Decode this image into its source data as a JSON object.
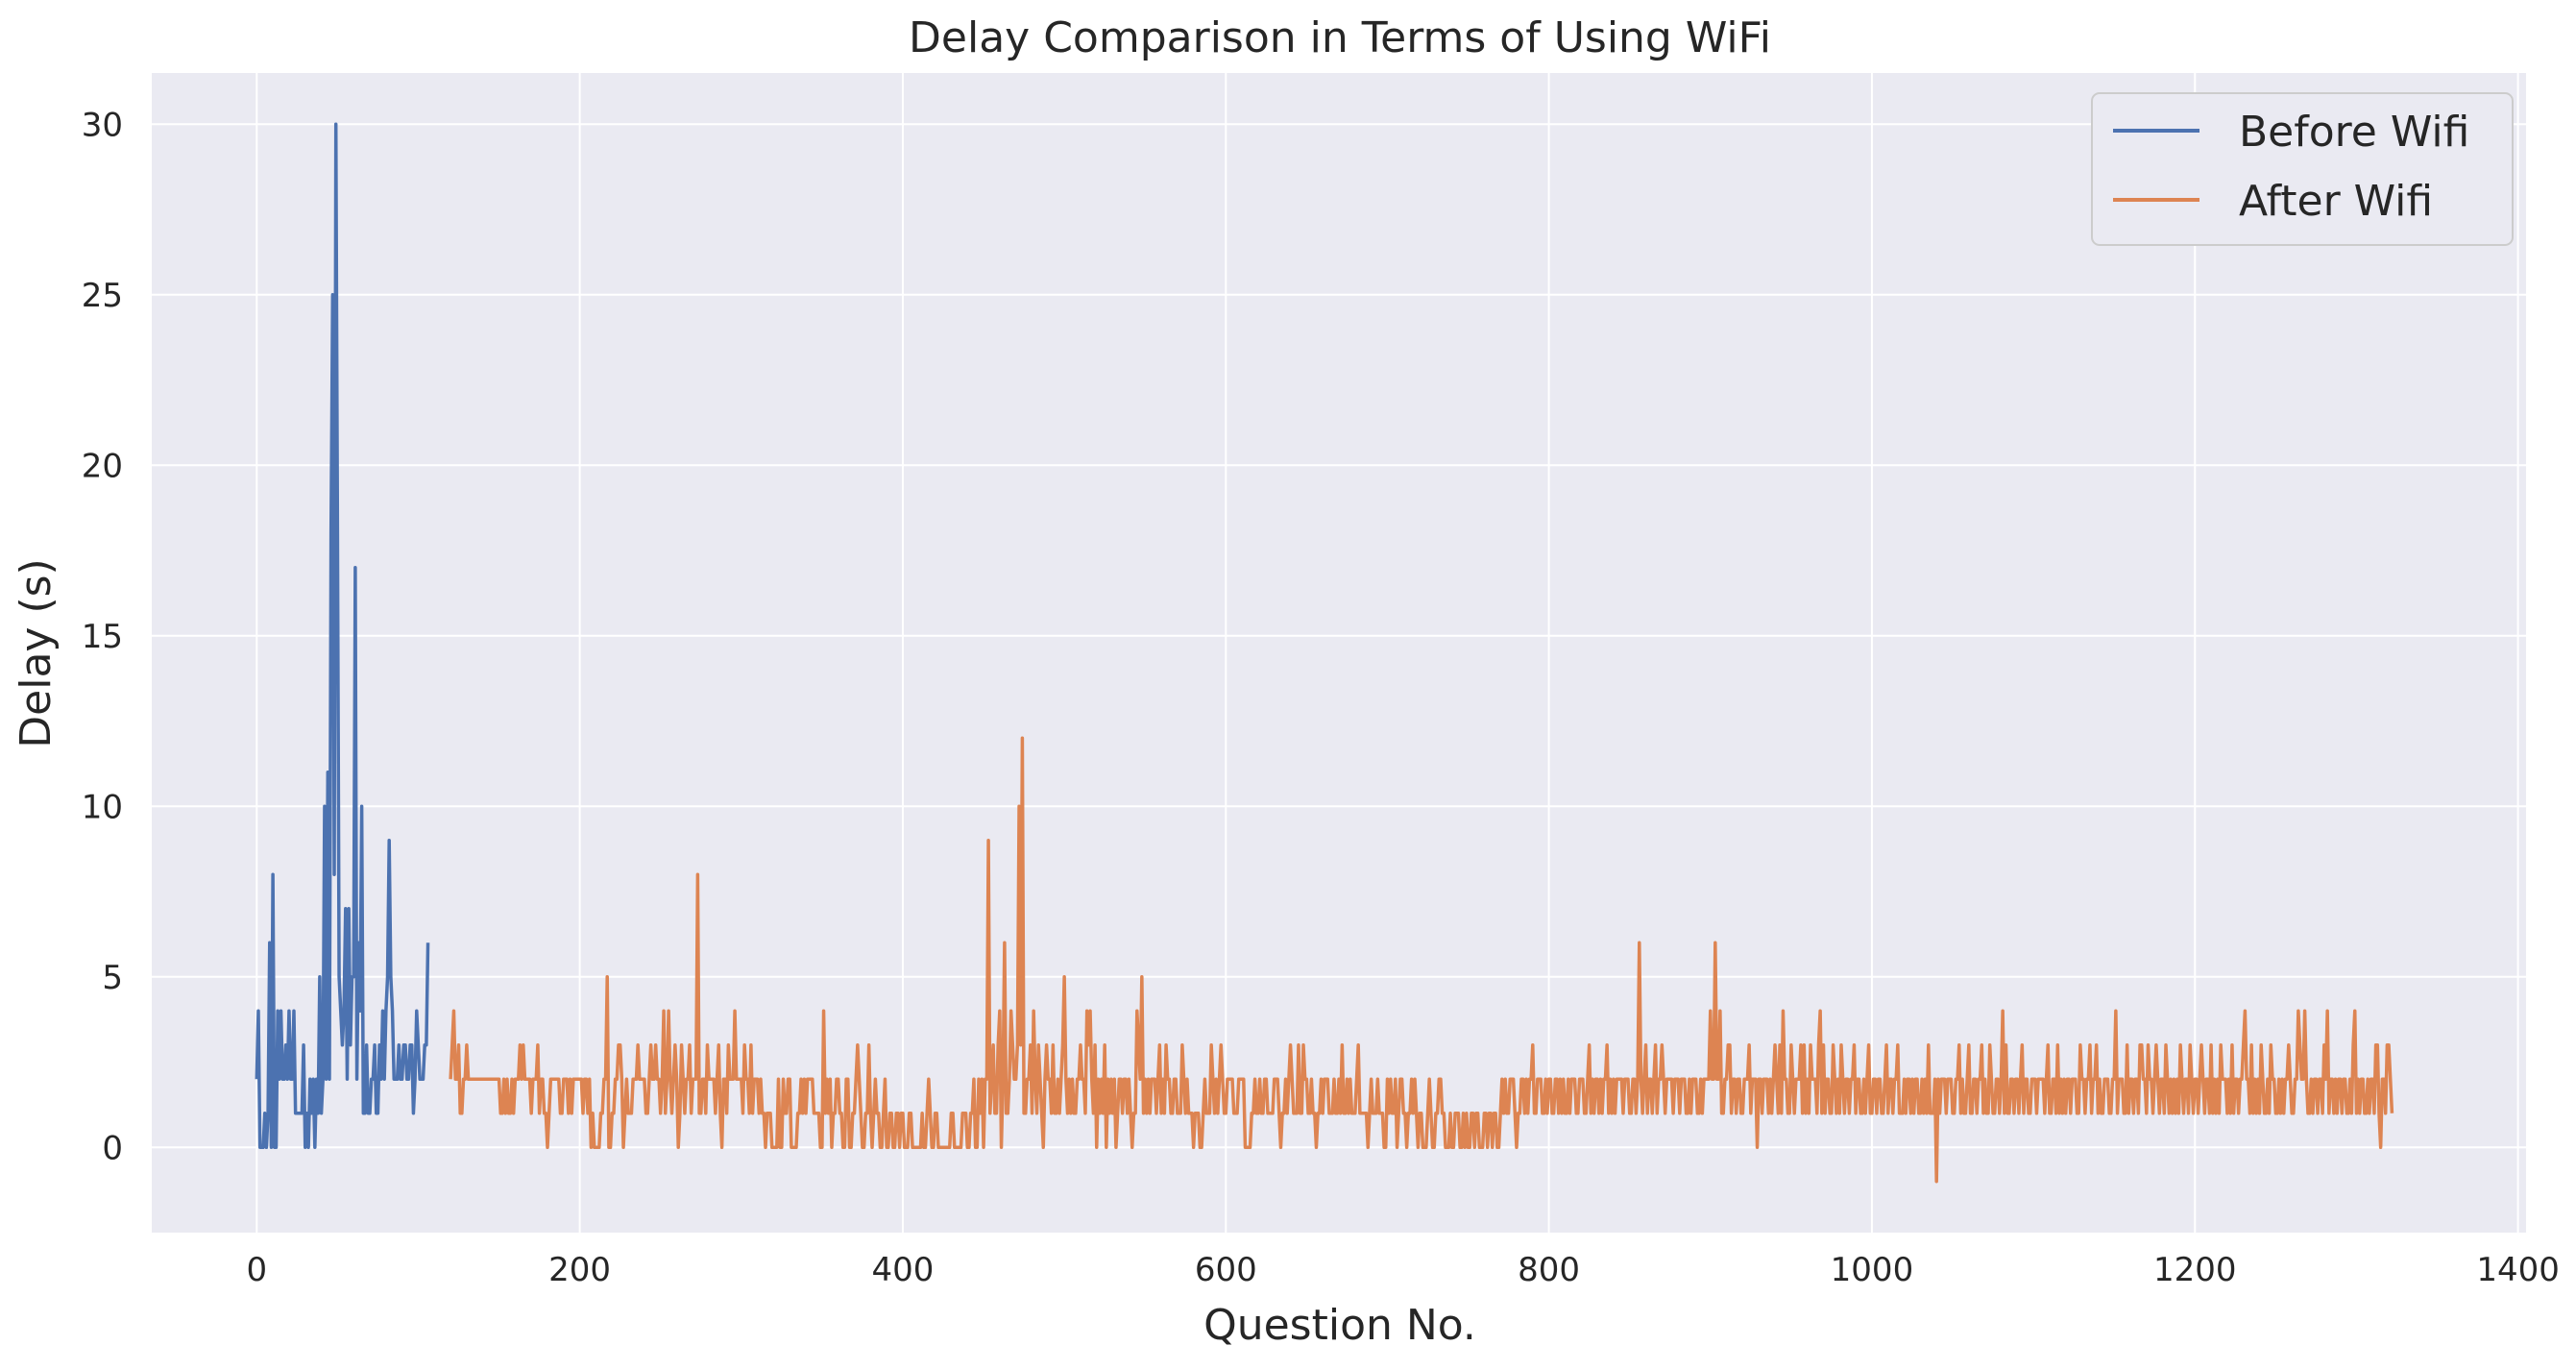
{
  "chart_data": {
    "type": "line",
    "title": "Delay Comparison in Terms of Using WiFi",
    "xlabel": "Question No.",
    "ylabel": "Delay (s)",
    "xlim": [
      -65,
      1405
    ],
    "ylim": [
      -2.5,
      31.5
    ],
    "xticks": [
      0,
      200,
      400,
      600,
      800,
      1000,
      1200,
      1400
    ],
    "yticks": [
      0,
      5,
      10,
      15,
      20,
      25,
      30
    ],
    "grid": true,
    "legend_position": "top-right",
    "colors": {
      "background": "#eaeaf2",
      "grid": "#ffffff",
      "before": "#4c72b0",
      "after": "#dd8452"
    },
    "series": [
      {
        "name": "Before Wifi",
        "x_start": 0,
        "values": [
          2,
          4,
          0,
          0,
          0,
          1,
          0,
          1,
          6,
          0,
          8,
          0,
          0,
          4,
          2,
          4,
          2,
          2,
          3,
          2,
          4,
          2,
          2,
          4,
          1,
          1,
          1,
          1,
          1,
          3,
          0,
          1,
          0,
          2,
          1,
          2,
          0,
          2,
          1,
          5,
          1,
          2,
          10,
          2,
          11,
          2,
          18,
          25,
          8,
          30,
          18,
          5,
          4,
          3,
          4,
          7,
          2,
          7,
          3,
          5,
          5,
          17,
          2,
          6,
          4,
          10,
          1,
          1,
          3,
          1,
          1,
          2,
          2,
          3,
          1,
          1,
          3,
          2,
          4,
          2,
          4,
          5,
          9,
          5,
          4,
          2,
          2,
          2,
          3,
          2,
          2,
          3,
          3,
          2,
          2,
          3,
          3,
          1,
          2,
          4,
          3,
          2,
          2,
          2,
          3,
          3,
          6
        ]
      },
      {
        "name": "After Wifi",
        "x_start": 120,
        "values": [
          2,
          3,
          4,
          2,
          2,
          3,
          1,
          1,
          2,
          2,
          3,
          2,
          2,
          2,
          2,
          2,
          2,
          2,
          2,
          2,
          2,
          2,
          2,
          2,
          2,
          2,
          2,
          2,
          2,
          2,
          2,
          1,
          1,
          2,
          1,
          2,
          1,
          1,
          2,
          1,
          2,
          2,
          2,
          3,
          2,
          3,
          2,
          2,
          2,
          2,
          1,
          2,
          2,
          2,
          3,
          1,
          2,
          2,
          1,
          1,
          0,
          1,
          2,
          2,
          2,
          2,
          2,
          2,
          1,
          1,
          2,
          2,
          2,
          1,
          2,
          1,
          2,
          2,
          2,
          2,
          2,
          2,
          1,
          2,
          2,
          1,
          2,
          0,
          1,
          0,
          0,
          0,
          0,
          1,
          1,
          2,
          2,
          5,
          0,
          0,
          1,
          1,
          2,
          2,
          3,
          3,
          2,
          0,
          1,
          2,
          1,
          1,
          1,
          2,
          2,
          2,
          3,
          2,
          2,
          2,
          2,
          1,
          1,
          2,
          3,
          2,
          2,
          3,
          2,
          2,
          1,
          2,
          4,
          1,
          2,
          4,
          2,
          1,
          2,
          3,
          2,
          0,
          1,
          3,
          2,
          1,
          2,
          2,
          3,
          1,
          2,
          2,
          2,
          8,
          1,
          1,
          2,
          2,
          1,
          3,
          2,
          2,
          2,
          2,
          1,
          2,
          3,
          1,
          0,
          2,
          2,
          1,
          3,
          2,
          2,
          2,
          4,
          2,
          2,
          2,
          2,
          1,
          3,
          2,
          2,
          1,
          3,
          1,
          2,
          2,
          2,
          1,
          2,
          1,
          1,
          0,
          1,
          1,
          1,
          0,
          0,
          0,
          0,
          2,
          0,
          0,
          2,
          1,
          1,
          2,
          2,
          0,
          0,
          0,
          0,
          1,
          1,
          2,
          1,
          2,
          1,
          2,
          2,
          2,
          2,
          1,
          1,
          1,
          1,
          0,
          0,
          4,
          1,
          2,
          1,
          2,
          0,
          1,
          1,
          2,
          2,
          1,
          1,
          0,
          0,
          2,
          2,
          0,
          0,
          1,
          1,
          2,
          3,
          2,
          1,
          0,
          0,
          1,
          1,
          3,
          1,
          0,
          1,
          2,
          1,
          1,
          0,
          0,
          1,
          2,
          0,
          0,
          1,
          1,
          0,
          0,
          1,
          1,
          0,
          1,
          1,
          0,
          0,
          0,
          1,
          1,
          0,
          0,
          0,
          0,
          0,
          0,
          1,
          0,
          0,
          1,
          2,
          1,
          0,
          0,
          1,
          1,
          0,
          0,
          0,
          0,
          0,
          0,
          0,
          0,
          1,
          1,
          0,
          0,
          0,
          0,
          0,
          1,
          1,
          1,
          0,
          0,
          1,
          1,
          2,
          0,
          0,
          2,
          1,
          2,
          0,
          2,
          2,
          9,
          1,
          2,
          3,
          1,
          1,
          3,
          4,
          0,
          2,
          6,
          1,
          1,
          2,
          4,
          3,
          2,
          2,
          3,
          10,
          3,
          12,
          1,
          1,
          2,
          2,
          3,
          1,
          4,
          2,
          1,
          3,
          2,
          1,
          0,
          2,
          3,
          2,
          2,
          1,
          3,
          1,
          1,
          2,
          1,
          2,
          3,
          5,
          2,
          1,
          2,
          1,
          2,
          1,
          1,
          2,
          2,
          3,
          2,
          2,
          1,
          4,
          3,
          4,
          2,
          1,
          3,
          0,
          2,
          1,
          2,
          1,
          3,
          0,
          2,
          1,
          2,
          1,
          2,
          0,
          1,
          2,
          2,
          1,
          2,
          2,
          1,
          2,
          1,
          0,
          1,
          1,
          4,
          3,
          2,
          5,
          1,
          2,
          1,
          2,
          1,
          2,
          2,
          2,
          1,
          2,
          3,
          1,
          2,
          1,
          3,
          2,
          2,
          1,
          1,
          2,
          2,
          1,
          1,
          1,
          3,
          2,
          1,
          2,
          1,
          1,
          1,
          0,
          1,
          1,
          1,
          0,
          0,
          1,
          2,
          1,
          1,
          1,
          3,
          2,
          1,
          2,
          1,
          2,
          3,
          2,
          1,
          1,
          2,
          2,
          2,
          2,
          1,
          1,
          1,
          2,
          2,
          2,
          2,
          0,
          0,
          0,
          0,
          1,
          1,
          2,
          1,
          1,
          2,
          1,
          1,
          2,
          2,
          1,
          1,
          1,
          1,
          2,
          2,
          2,
          1,
          0,
          1,
          1,
          2,
          1,
          2,
          3,
          2,
          1,
          1,
          1,
          3,
          1,
          1,
          3,
          2,
          2,
          1,
          1,
          2,
          1,
          1,
          0,
          1,
          1,
          2,
          1,
          2,
          2,
          2,
          1,
          1,
          1,
          2,
          1,
          1,
          2,
          1,
          3,
          1,
          1,
          2,
          1,
          2,
          1,
          1,
          1,
          2,
          3,
          1,
          1,
          1,
          1,
          1,
          0,
          1,
          2,
          1,
          1,
          1,
          2,
          1,
          1,
          1,
          0,
          0,
          2,
          1,
          2,
          1,
          1,
          2,
          0,
          1,
          2,
          2,
          1,
          1,
          0,
          1,
          1,
          2,
          1,
          2,
          1,
          0,
          1,
          1,
          0,
          0,
          0,
          1,
          2,
          1,
          0,
          0,
          1,
          1,
          2,
          2,
          1,
          1,
          0,
          0,
          0,
          1,
          0,
          0,
          1,
          1,
          1,
          0,
          0,
          1,
          0,
          1,
          0,
          0,
          1,
          1,
          0,
          1,
          1,
          0,
          0,
          0,
          1,
          1,
          0,
          1,
          1,
          0,
          1,
          1,
          0,
          0,
          1,
          2,
          1,
          2,
          1,
          1,
          2,
          2,
          2,
          1,
          0,
          1,
          1,
          2,
          2,
          1,
          2,
          1,
          2,
          2,
          3,
          1,
          1,
          2,
          2,
          2,
          1,
          1,
          2,
          1,
          2,
          2,
          1,
          1,
          2,
          2,
          1,
          2,
          1,
          2,
          1,
          1,
          2,
          1,
          2,
          2,
          2,
          1,
          1,
          2,
          2,
          2,
          1,
          1,
          2,
          3,
          1,
          2,
          1,
          2,
          2,
          1,
          2,
          1,
          2,
          2,
          3,
          1,
          2,
          1,
          2,
          1,
          2,
          2,
          2,
          2,
          1,
          2,
          2,
          2,
          1,
          1,
          2,
          2,
          1,
          2,
          6,
          2,
          1,
          2,
          3,
          1,
          2,
          2,
          1,
          2,
          3,
          1,
          2,
          2,
          3,
          2,
          1,
          2,
          2,
          2,
          2,
          1,
          2,
          2,
          2,
          1,
          2,
          2,
          2,
          1,
          1,
          2,
          1,
          2,
          2,
          2,
          1,
          1,
          2,
          1,
          2,
          2,
          2,
          2,
          4,
          2,
          2,
          6,
          2,
          2,
          4,
          1,
          1,
          2,
          2,
          3,
          3,
          1,
          2,
          2,
          1,
          2,
          2,
          1,
          1,
          2,
          2,
          2,
          3,
          1,
          2,
          2,
          2,
          0,
          2,
          2,
          1,
          2,
          2,
          2,
          1,
          2,
          1,
          2,
          3,
          2,
          1,
          3,
          1,
          4,
          2,
          2,
          1,
          1,
          3,
          2,
          1,
          2,
          2,
          2,
          3,
          1,
          3,
          1,
          2,
          1,
          3,
          2,
          2,
          2,
          1,
          3,
          4,
          1,
          3,
          1,
          2,
          2,
          1,
          1,
          3,
          2,
          1,
          2,
          1,
          3,
          2,
          1,
          2,
          2,
          1,
          2,
          2,
          3,
          1,
          2,
          2,
          1,
          1,
          2,
          1,
          2,
          3,
          1,
          1,
          2,
          2,
          1,
          2,
          2,
          1,
          1,
          2,
          3,
          1,
          2,
          2,
          1,
          2,
          2,
          3,
          1,
          1,
          1,
          2,
          1,
          2,
          2,
          1,
          2,
          1,
          2,
          2,
          1,
          1,
          2,
          1,
          2,
          1,
          3,
          1,
          1,
          1,
          2,
          -1,
          2,
          1,
          2,
          2,
          2,
          1,
          2,
          2,
          2,
          1,
          1,
          2,
          2,
          3,
          1,
          2,
          1,
          1,
          2,
          3,
          1,
          1,
          2,
          2,
          1,
          2,
          2,
          3,
          1,
          2,
          1,
          1,
          3,
          2,
          1,
          1,
          2,
          2,
          1,
          2,
          4,
          1,
          3,
          1,
          1,
          2,
          2,
          1,
          2,
          2,
          1,
          2,
          3,
          1,
          2,
          2,
          1,
          1,
          2,
          2,
          2,
          1,
          2,
          2,
          2,
          2,
          1,
          2,
          3,
          1,
          1,
          2,
          2,
          1,
          3,
          1,
          2,
          1,
          2,
          1,
          2,
          2,
          1,
          2,
          2,
          2,
          1,
          1,
          3,
          2,
          2,
          1,
          2,
          2,
          3,
          1,
          2,
          2,
          3,
          1,
          2,
          1,
          1,
          2,
          2,
          2,
          1,
          1,
          2,
          2,
          4,
          1,
          2,
          2,
          2,
          1,
          1,
          3,
          1,
          2,
          2,
          1,
          2,
          2,
          1,
          3,
          3,
          2,
          2,
          1,
          3,
          2,
          2,
          1,
          2,
          3,
          2,
          1,
          2,
          2,
          1,
          3,
          2,
          1,
          2,
          1,
          2,
          1,
          2,
          1,
          3,
          2,
          1,
          2,
          2,
          1,
          3,
          2,
          1,
          2,
          2,
          1,
          2,
          3,
          2,
          1,
          2,
          2,
          1,
          3,
          1,
          2,
          1,
          2,
          1,
          3,
          2,
          2,
          2,
          1,
          2,
          1,
          3,
          1,
          2,
          2,
          1,
          2,
          2,
          3,
          4,
          2,
          2,
          1,
          3,
          1,
          2,
          1,
          2,
          1,
          3,
          2,
          1,
          1,
          2,
          1,
          3,
          2,
          2,
          1,
          1,
          2,
          1,
          2,
          1,
          2,
          2,
          3,
          2,
          1,
          1,
          2,
          2,
          4,
          3,
          2,
          2,
          4,
          2,
          1,
          1,
          2,
          1,
          2,
          2,
          1,
          2,
          2,
          1,
          3,
          2,
          4,
          1,
          2,
          2,
          1,
          2,
          1,
          2,
          2,
          1,
          2,
          2,
          1,
          1,
          2,
          1,
          3,
          4,
          1,
          2,
          1,
          2,
          2,
          1,
          1,
          2,
          1,
          2,
          2,
          1,
          3,
          3,
          1,
          0,
          2,
          2,
          1,
          3,
          3,
          2,
          1
        ]
      }
    ]
  }
}
